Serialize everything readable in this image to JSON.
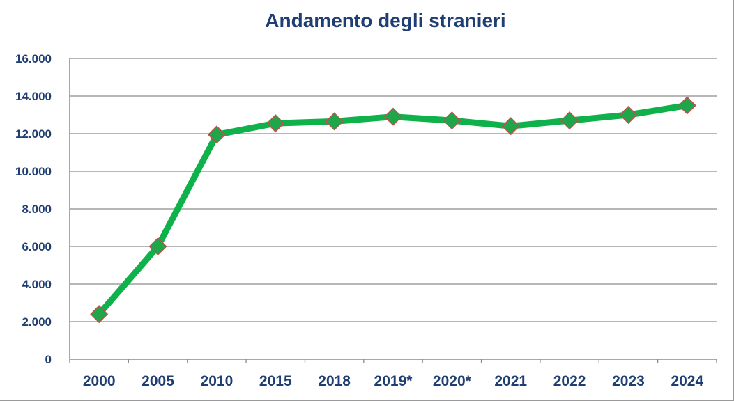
{
  "chart_data": {
    "type": "line",
    "title": "Andamento degli stranieri",
    "xlabel": "",
    "ylabel": "",
    "categories": [
      "2000",
      "2005",
      "2010",
      "2015",
      "2018",
      "2019*",
      "2020*",
      "2021",
      "2022",
      "2023",
      "2024"
    ],
    "series": [
      {
        "values": [
          2400,
          6000,
          11950,
          12550,
          12650,
          12900,
          12700,
          12400,
          12700,
          13000,
          13500
        ]
      }
    ],
    "ylim": [
      0,
      16000
    ],
    "yticks": [
      0,
      2000,
      4000,
      6000,
      8000,
      10000,
      12000,
      14000,
      16000
    ],
    "ytick_labels": [
      "0",
      "2.000",
      "4.000",
      "6.000",
      "8.000",
      "10.000",
      "12.000",
      "14.000",
      "16.000"
    ],
    "grid": true,
    "legend": "none",
    "colors": {
      "line": "#0fb14b",
      "marker_fill": "#1fa64a",
      "marker_stroke": "#c0504d",
      "grid": "#8c8c8c",
      "text": "#1f3e73"
    }
  }
}
